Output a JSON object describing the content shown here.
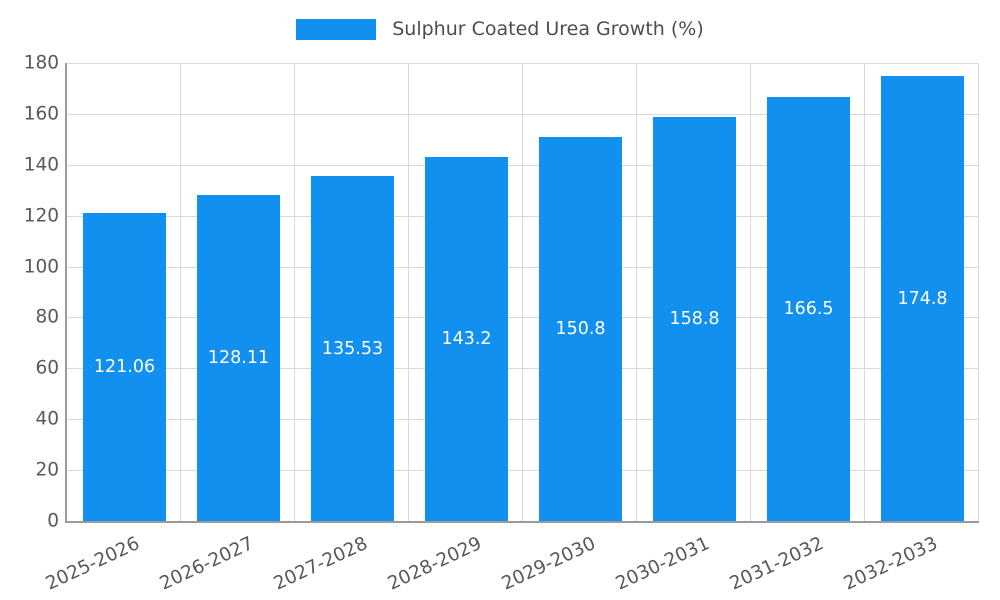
{
  "chart_data": {
    "type": "bar",
    "title": "Sulphur Coated Urea Growth (%)",
    "categories": [
      "2025-2026",
      "2026-2027",
      "2027-2028",
      "2028-2029",
      "2029-2030",
      "2030-2031",
      "2031-2032",
      "2032-2033"
    ],
    "values": [
      121.06,
      128.11,
      135.53,
      143.2,
      150.8,
      158.8,
      166.5,
      174.8
    ],
    "value_labels": [
      "121.06",
      "128.11",
      "135.53",
      "143.2",
      "150.8",
      "158.8",
      "166.5",
      "174.8"
    ],
    "xlabel": "",
    "ylabel": "",
    "ylim": [
      0,
      180
    ],
    "ytick_step": 20,
    "grid": "on",
    "legend_position": "top",
    "colors": {
      "bar": "#1290f0",
      "axis_text": "#595959",
      "gridline": "#d9d9d9",
      "axis_line": "#9b9b9b",
      "value_label_text": "#ffffff",
      "background": "#ffffff"
    }
  }
}
